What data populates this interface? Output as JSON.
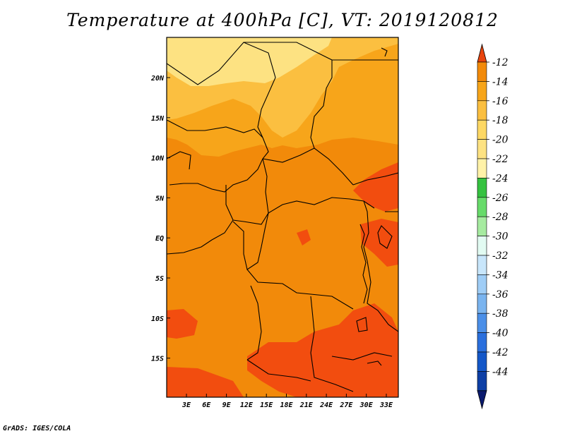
{
  "title": "Temperature at 400hPa [C], VT: 2019120812",
  "credit": "GrADS: IGES/COLA",
  "colors": {
    "c_m12": "#f24d0f",
    "c_m14": "#f28a0a",
    "c_m16": "#f7a51a",
    "c_m18": "#fbbf40",
    "c_m20": "#fde282",
    "c_m22": "#fff2a8",
    "over": "#e8440e",
    "under": "#dcdcff"
  },
  "map": {
    "lat_labels": [
      "20N",
      "15N",
      "10N",
      "5N",
      "EQ",
      "5S",
      "10S",
      "15S"
    ],
    "lon_labels": [
      "3E",
      "6E",
      "9E",
      "12E",
      "15E",
      "18E",
      "21E",
      "24E",
      "27E",
      "30E",
      "33E"
    ]
  },
  "colorbar": {
    "labels": [
      "-12",
      "-14",
      "-16",
      "-18",
      "-20",
      "-22",
      "-24",
      "-26",
      "-28",
      "-30",
      "-32",
      "-34",
      "-36",
      "-38",
      "-40",
      "-42",
      "-44"
    ],
    "colors": [
      "#f28a0a",
      "#f7a51a",
      "#fbbf40",
      "#fdd864",
      "#fde282",
      "#fff2a8",
      "#35c240",
      "#67db6a",
      "#a6eba0",
      "#e2fbf2",
      "#c8e6fb",
      "#9fcdf6",
      "#7ab4ef",
      "#4b8fe8",
      "#2a6fdd",
      "#1457c8",
      "#0d3fa5"
    ],
    "bottom_color": "#0a1a6e"
  }
}
